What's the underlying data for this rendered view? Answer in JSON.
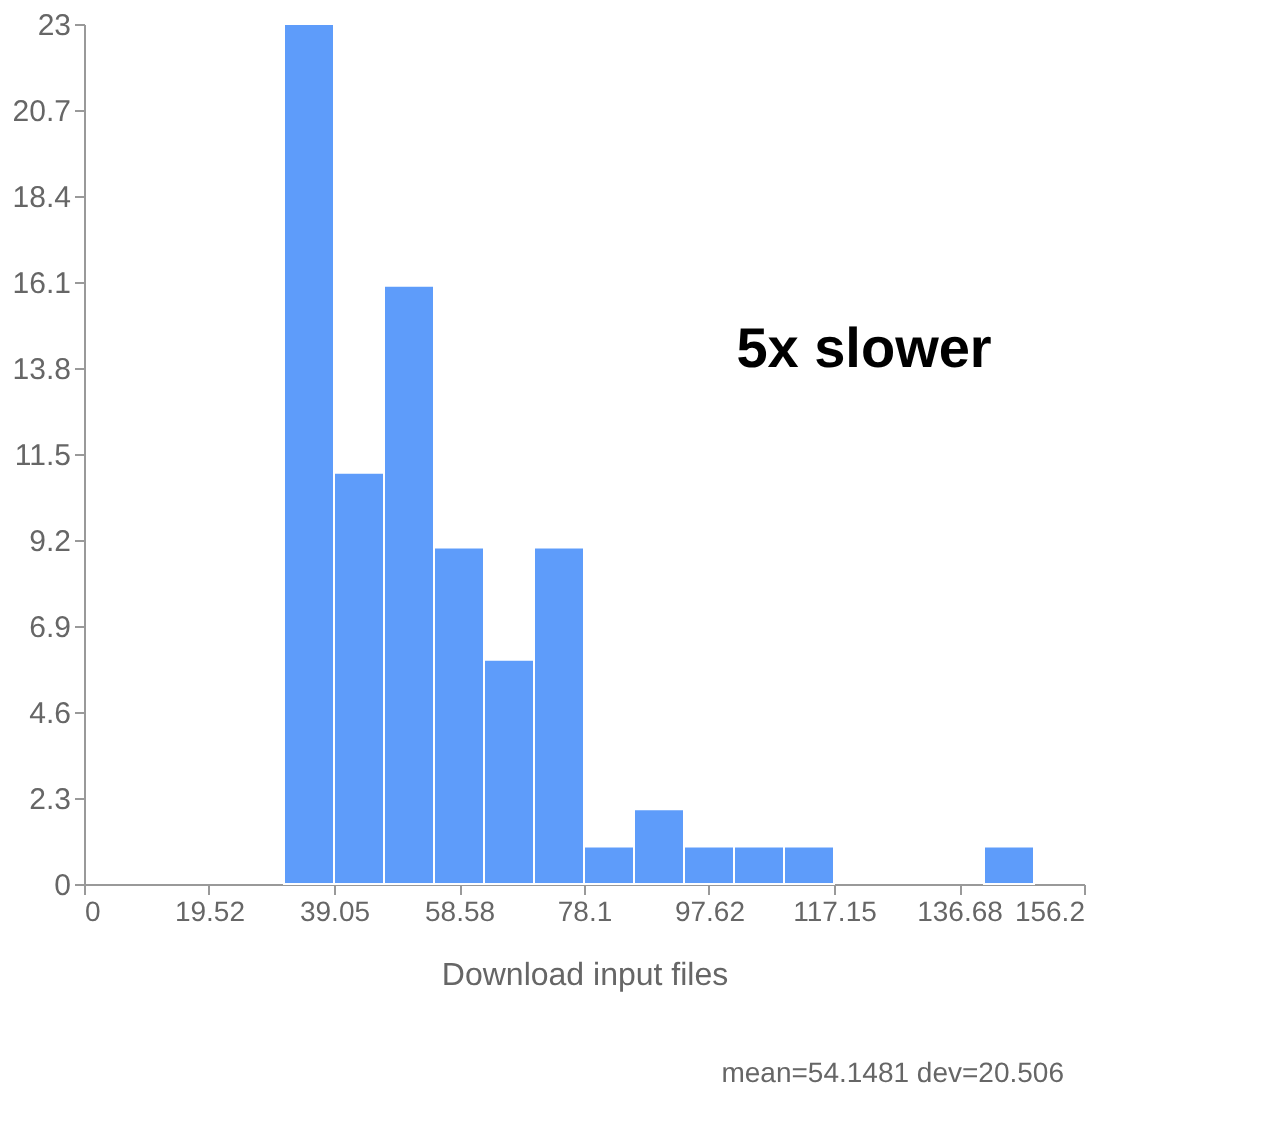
{
  "chart_data": {
    "type": "histogram",
    "xlabel": "Download input files",
    "bins": [
      31.24,
      39.05,
      46.86,
      54.67,
      62.48,
      70.29,
      78.1,
      85.91,
      93.72,
      101.53,
      109.34,
      117.15,
      124.96,
      132.77,
      140.58,
      148.39
    ],
    "values": [
      23,
      11,
      16,
      9,
      6,
      9,
      1,
      2,
      1,
      1,
      1,
      0,
      0,
      0,
      1
    ],
    "color": "#5e9cfa",
    "xlim": [
      0,
      156.2
    ],
    "xticks": [
      0,
      19.52,
      39.05,
      58.58,
      78.1,
      97.62,
      117.15,
      136.68,
      156.2
    ],
    "ylim": [
      0,
      23
    ],
    "yticks": [
      0,
      2.3,
      4.6,
      6.9,
      9.2,
      11.5,
      13.8,
      16.1,
      18.4,
      20.7,
      23
    ],
    "grid": false,
    "annotations": [
      "5x slower",
      "mean=54.1481 dev=20.506"
    ]
  }
}
